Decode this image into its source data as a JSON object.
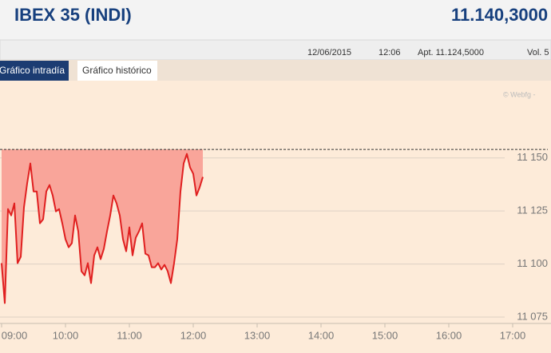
{
  "header": {
    "title": "IBEX 35 (INDI)",
    "price": "11.140,3000",
    "date": "12/06/2015",
    "time": "12:06",
    "open": "Apt. 11.124,5000",
    "volume": "Vol. 5"
  },
  "tabs": [
    "Gráfico intradía",
    "Gráfico histórico"
  ],
  "watermark": "© Webfg -",
  "chart_data": {
    "type": "area",
    "color": "#e02020",
    "fill": "#f9a59a",
    "reference": 11154,
    "grid": true,
    "xlim": [
      9,
      17.6
    ],
    "ylim": [
      11072,
      11183
    ],
    "xticks": [
      {
        "value": 9,
        "label": "09:00"
      },
      {
        "value": 10,
        "label": "10:00"
      },
      {
        "value": 11,
        "label": "11:00"
      },
      {
        "value": 12,
        "label": "12:00"
      },
      {
        "value": 13,
        "label": "13:00"
      },
      {
        "value": 14,
        "label": "14:00"
      },
      {
        "value": 15,
        "label": "15:00"
      },
      {
        "value": 16,
        "label": "16:00"
      },
      {
        "value": 17,
        "label": "17:00"
      }
    ],
    "yticks": [
      {
        "value": 11075,
        "label": "11 075"
      },
      {
        "value": 11100,
        "label": "11 100"
      },
      {
        "value": 11125,
        "label": "11 125"
      },
      {
        "value": 11150,
        "label": "11 150"
      }
    ],
    "x": [
      9,
      9.05,
      9.1,
      9.15,
      9.2,
      9.25,
      9.3,
      9.35,
      9.4,
      9.45,
      9.5,
      9.55,
      9.6,
      9.65,
      9.7,
      9.75,
      9.8,
      9.85,
      9.9,
      9.95,
      10,
      10.05,
      10.1,
      10.15,
      10.2,
      10.25,
      10.3,
      10.35,
      10.4,
      10.45,
      10.5,
      10.55,
      10.6,
      10.65,
      10.7,
      10.75,
      10.8,
      10.85,
      10.9,
      10.95,
      11,
      11.05,
      11.1,
      11.15,
      11.2,
      11.25,
      11.3,
      11.35,
      11.4,
      11.45,
      11.5,
      11.55,
      11.6,
      11.65,
      11.7,
      11.75,
      11.8,
      11.85,
      11.9,
      11.95,
      12,
      12.05,
      12.1,
      12.15
    ],
    "values": [
      11100.4,
      11081.6,
      11125.9,
      11122.9,
      11128.6,
      11100.4,
      11103.4,
      11126.7,
      11138.0,
      11147.4,
      11134.2,
      11134.2,
      11119.2,
      11121.1,
      11134.2,
      11137.2,
      11132.3,
      11124.8,
      11125.9,
      11119.2,
      11111.7,
      11107.9,
      11109.8,
      11122.9,
      11115.4,
      11096.6,
      11094.7,
      11100.4,
      11091.0,
      11104.1,
      11107.9,
      11102.3,
      11107.1,
      11115.4,
      11122.9,
      11132.3,
      11128.6,
      11122.9,
      11111.7,
      11106.0,
      11117.3,
      11104.1,
      11112.4,
      11115.4,
      11119.2,
      11104.9,
      11104.1,
      11098.5,
      11098.5,
      11100.4,
      11097.4,
      11099.6,
      11096.6,
      11091.0,
      11100.4,
      11111.7,
      11134.2,
      11147.4,
      11151.9,
      11145.5,
      11142.5,
      11132.3,
      11136.1,
      11141.0
    ]
  }
}
